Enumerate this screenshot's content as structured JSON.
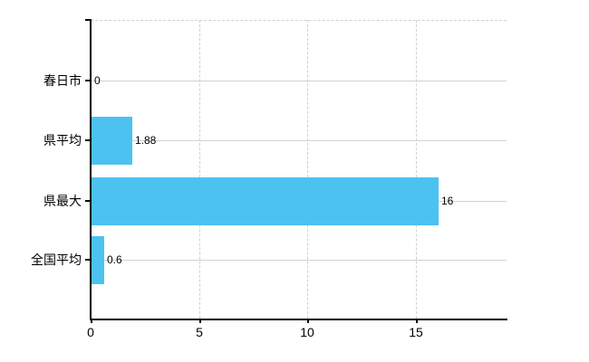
{
  "chart_data": {
    "type": "bar",
    "orientation": "horizontal",
    "title": "",
    "categories": [
      "春日市",
      "県平均",
      "県最大",
      "全国平均"
    ],
    "values": [
      0,
      1.88,
      16,
      0.6
    ],
    "value_labels": [
      "0",
      "1.88",
      "16",
      "0.6"
    ],
    "x_ticks": [
      0,
      5,
      10,
      15
    ],
    "x_tick_labels": [
      "0",
      "5",
      "10",
      "15"
    ],
    "xlim": [
      0,
      19.2
    ],
    "grid": true,
    "legend": false,
    "colors": {
      "bar": "#4cc2f1",
      "h_gridline": "#cdd5cd",
      "v_gridline_dashed": "#d5ced5",
      "axis": "#000000",
      "text": "#000000"
    }
  }
}
